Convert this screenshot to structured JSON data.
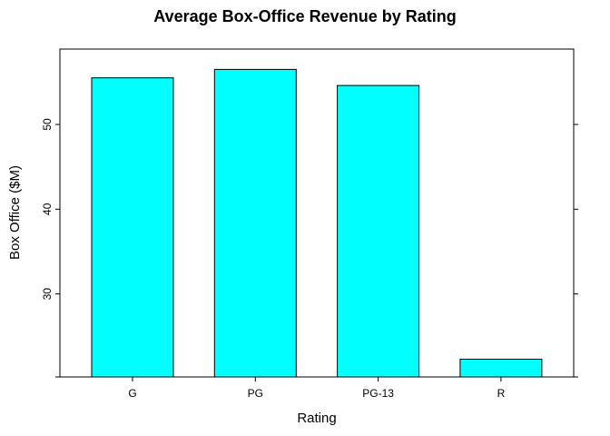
{
  "chart_data": {
    "type": "bar",
    "title": "Average Box-Office Revenue by Rating",
    "xlabel": "Rating",
    "ylabel": "Box Office ($M)",
    "categories": [
      "G",
      "PG",
      "PG-13",
      "R"
    ],
    "values": [
      55.5,
      56.5,
      54.6,
      22.3
    ],
    "ylim": [
      20.2,
      58.9
    ],
    "yticks": [
      30,
      40,
      50
    ],
    "grid": false,
    "bar_color": "#00FFFF"
  }
}
